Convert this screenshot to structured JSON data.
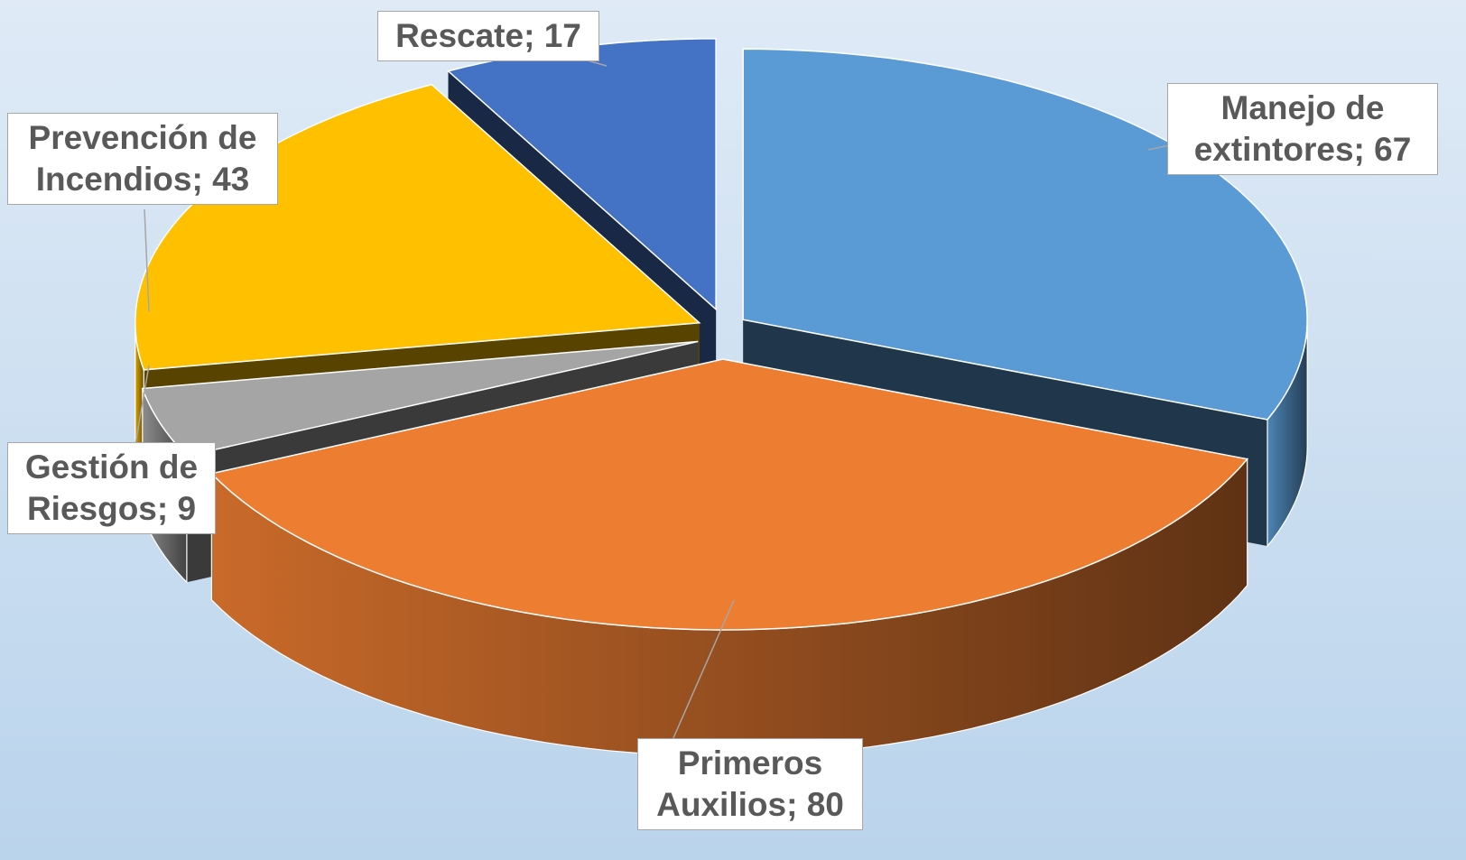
{
  "chart_data": {
    "type": "pie3d",
    "categories": [
      "Manejo de extintores",
      "Primeros Auxilios",
      "Gestión de Riesgos",
      "Prevención de Incendios",
      "Rescate"
    ],
    "values": [
      67,
      80,
      9,
      43,
      17
    ],
    "colors": [
      "#5b9bd5",
      "#ed7d31",
      "#a5a5a5",
      "#ffc000",
      "#4472c4"
    ],
    "label_separator": "; "
  }
}
